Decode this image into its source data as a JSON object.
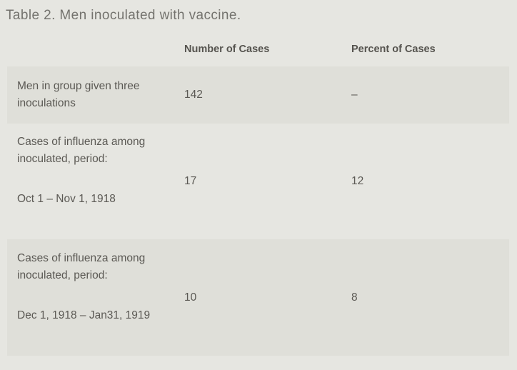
{
  "title": "Table 2. Men inoculated with vaccine.",
  "table": {
    "headers": {
      "label": "",
      "number": "Number of Cases",
      "percent": "Percent of Cases"
    },
    "rows": [
      {
        "label": [
          "Men in group given three inoculations"
        ],
        "number": "142",
        "percent": "–"
      },
      {
        "label": [
          "Cases of influenza among inoculated, period:",
          "Oct 1 – Nov 1, 1918"
        ],
        "number": "17",
        "percent": "12"
      },
      {
        "label": [
          "Cases of influenza among inoculated, period:",
          "Dec 1, 1918 – Jan31, 1919"
        ],
        "number": "10",
        "percent": "8"
      }
    ]
  },
  "colors": {
    "page_background": "#e6e6e1",
    "row_band": "#dfdfd9",
    "title_text": "#74736e",
    "header_text": "#55534e",
    "body_text": "#5b5954"
  }
}
